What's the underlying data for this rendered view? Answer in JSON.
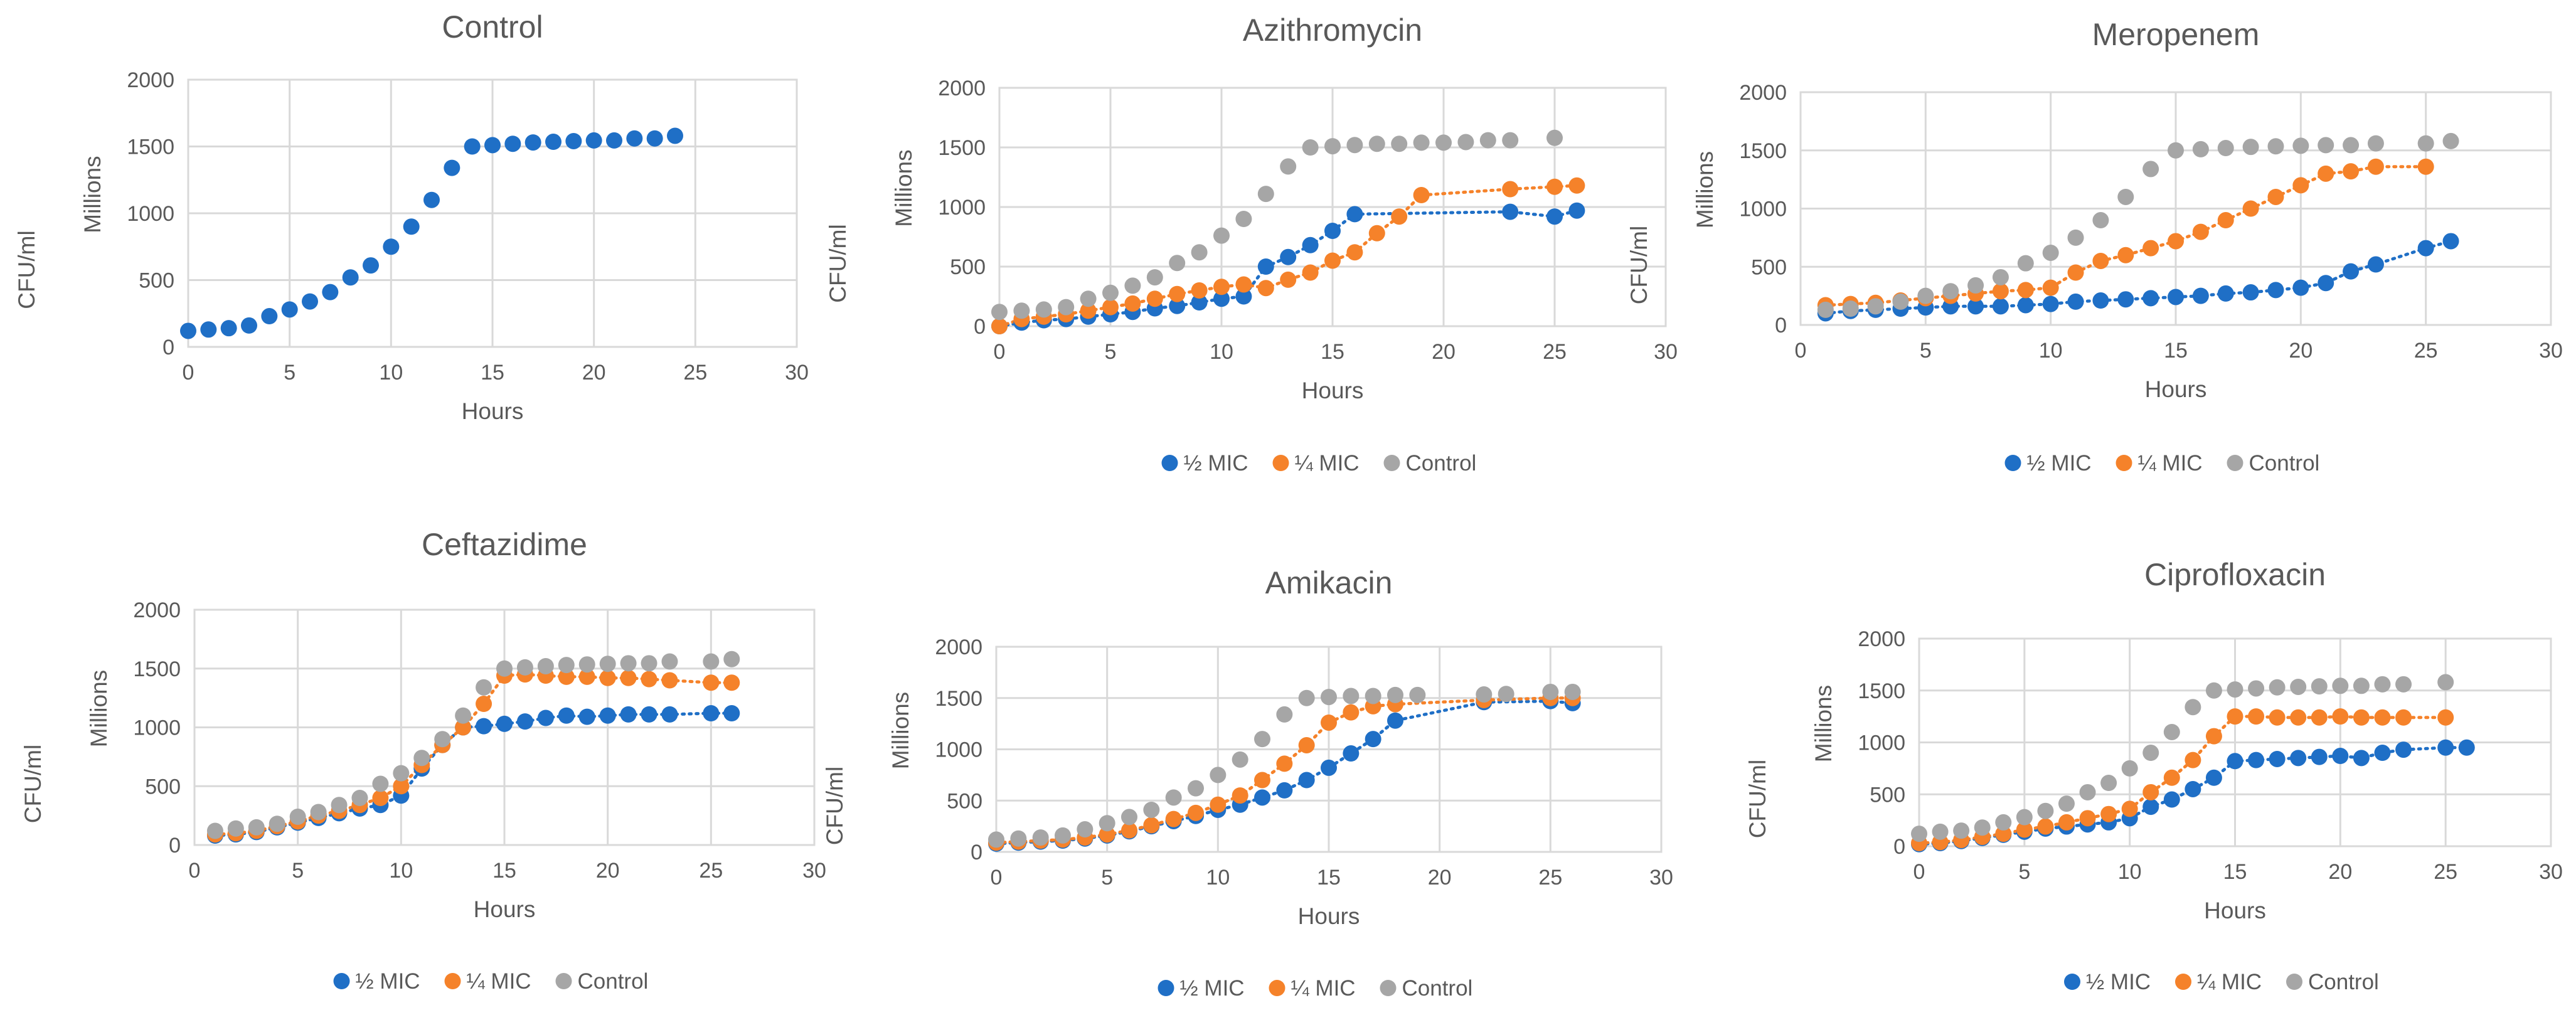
{
  "colors": {
    "half_mic": "#1f6fc6",
    "quarter_mic": "#f5822a",
    "control": "#a6a6a6"
  },
  "legend_labels": [
    "½ MIC",
    "¼ MIC",
    "Control"
  ],
  "chart_data": [
    {
      "type": "scatter",
      "title": "Control",
      "xlabel": "Hours",
      "ylabel": [
        "Millions",
        "CFU/ml"
      ],
      "xlim": [
        0,
        30
      ],
      "ylim": [
        0,
        2000
      ],
      "xticks": [
        "0",
        "5",
        "10",
        "15",
        "20",
        "25",
        "30"
      ],
      "yticks": [
        "0",
        "500",
        "1000",
        "1500",
        "2000"
      ],
      "legend": false,
      "series": [
        {
          "name": "Control",
          "color": "#1f6fc6",
          "trend": false,
          "x": [
            0,
            1,
            2,
            3,
            4,
            5,
            6,
            7,
            8,
            9,
            10,
            11,
            12,
            13,
            14,
            15,
            16,
            17,
            18,
            19,
            20,
            21,
            22,
            23,
            24
          ],
          "y": [
            120,
            130,
            140,
            160,
            230,
            280,
            340,
            410,
            520,
            610,
            750,
            900,
            1100,
            1340,
            1500,
            1510,
            1520,
            1530,
            1535,
            1540,
            1545,
            1545,
            1560,
            1560,
            1580
          ]
        }
      ]
    },
    {
      "type": "scatter",
      "title": "Azithromycin",
      "xlabel": "Hours",
      "ylabel": [
        "Millions",
        "CFU/ml"
      ],
      "xlim": [
        0,
        30
      ],
      "ylim": [
        0,
        2000
      ],
      "xticks": [
        "0",
        "5",
        "10",
        "15",
        "20",
        "25",
        "30"
      ],
      "yticks": [
        "0",
        "500",
        "1000",
        "1500",
        "2000"
      ],
      "legend": true,
      "series": [
        {
          "name": "½ MIC",
          "color": "#1f6fc6",
          "trend": true,
          "x": [
            0,
            1,
            2,
            3,
            4,
            5,
            6,
            7,
            8,
            9,
            10,
            11,
            12,
            13,
            14,
            15,
            16,
            23,
            25,
            26
          ],
          "y": [
            0,
            30,
            50,
            60,
            80,
            100,
            120,
            150,
            170,
            200,
            230,
            250,
            500,
            580,
            680,
            800,
            940,
            960,
            920,
            970
          ]
        },
        {
          "name": "¼ MIC",
          "color": "#f5822a",
          "trend": true,
          "x": [
            0,
            1,
            2,
            3,
            4,
            5,
            6,
            7,
            8,
            9,
            10,
            11,
            12,
            13,
            14,
            15,
            16,
            17,
            18,
            19,
            23,
            25,
            26
          ],
          "y": [
            0,
            60,
            80,
            100,
            130,
            160,
            190,
            230,
            270,
            300,
            330,
            350,
            320,
            390,
            450,
            550,
            620,
            780,
            920,
            1100,
            1150,
            1170,
            1180
          ]
        },
        {
          "name": "Control",
          "color": "#a6a6a6",
          "trend": false,
          "x": [
            0,
            1,
            2,
            3,
            4,
            5,
            6,
            7,
            8,
            9,
            10,
            11,
            12,
            13,
            14,
            15,
            16,
            17,
            18,
            19,
            20,
            21,
            22,
            23,
            25
          ],
          "y": [
            120,
            130,
            140,
            160,
            230,
            280,
            340,
            410,
            530,
            620,
            760,
            900,
            1110,
            1340,
            1500,
            1510,
            1520,
            1530,
            1530,
            1540,
            1540,
            1545,
            1560,
            1560,
            1580
          ]
        }
      ]
    },
    {
      "type": "scatter",
      "title": "Meropenem",
      "xlabel": "Hours",
      "ylabel": [
        "Millions",
        "CFU/ml"
      ],
      "xlim": [
        0,
        30
      ],
      "ylim": [
        0,
        2000
      ],
      "xticks": [
        "0",
        "5",
        "10",
        "15",
        "20",
        "25",
        "30"
      ],
      "yticks": [
        "0",
        "500",
        "1000",
        "1500",
        "2000"
      ],
      "legend": true,
      "series": [
        {
          "name": "½ MIC",
          "color": "#1f6fc6",
          "trend": true,
          "x": [
            1,
            2,
            3,
            4,
            5,
            6,
            7,
            8,
            9,
            10,
            11,
            12,
            13,
            14,
            15,
            16,
            17,
            18,
            19,
            20,
            21,
            22,
            23,
            25,
            26
          ],
          "y": [
            100,
            120,
            130,
            140,
            150,
            160,
            160,
            160,
            170,
            180,
            200,
            210,
            220,
            230,
            240,
            250,
            270,
            280,
            300,
            320,
            360,
            460,
            520,
            660,
            720
          ]
        },
        {
          "name": "¼ MIC",
          "color": "#f5822a",
          "trend": true,
          "x": [
            1,
            2,
            3,
            4,
            5,
            6,
            7,
            8,
            9,
            10,
            11,
            12,
            13,
            14,
            15,
            16,
            17,
            18,
            19,
            20,
            21,
            22,
            23,
            25
          ],
          "y": [
            170,
            180,
            190,
            210,
            230,
            250,
            270,
            290,
            300,
            320,
            450,
            550,
            600,
            660,
            720,
            800,
            900,
            1000,
            1100,
            1200,
            1300,
            1320,
            1360,
            1360
          ]
        },
        {
          "name": "Control",
          "color": "#a6a6a6",
          "trend": false,
          "x": [
            1,
            2,
            3,
            4,
            5,
            6,
            7,
            8,
            9,
            10,
            11,
            12,
            13,
            14,
            15,
            16,
            17,
            18,
            19,
            20,
            21,
            22,
            23,
            25,
            26
          ],
          "y": [
            130,
            140,
            160,
            200,
            250,
            290,
            340,
            410,
            530,
            620,
            750,
            900,
            1100,
            1340,
            1500,
            1510,
            1520,
            1530,
            1535,
            1540,
            1545,
            1545,
            1560,
            1560,
            1580
          ]
        }
      ]
    },
    {
      "type": "scatter",
      "title": "Ceftazidime",
      "xlabel": "Hours",
      "ylabel": [
        "Millions",
        "CFU/ml"
      ],
      "xlim": [
        0,
        30
      ],
      "ylim": [
        0,
        2000
      ],
      "xticks": [
        "0",
        "5",
        "10",
        "15",
        "20",
        "25",
        "30"
      ],
      "yticks": [
        "0",
        "500",
        "1000",
        "1500",
        "2000"
      ],
      "legend": true,
      "series": [
        {
          "name": "½ MIC",
          "color": "#1f6fc6",
          "trend": true,
          "x": [
            1,
            2,
            3,
            4,
            5,
            6,
            7,
            8,
            9,
            10,
            11,
            12,
            13,
            14,
            15,
            16,
            17,
            18,
            19,
            20,
            21,
            22,
            23,
            25,
            26
          ],
          "y": [
            80,
            90,
            110,
            150,
            190,
            230,
            270,
            310,
            340,
            420,
            650,
            850,
            1000,
            1010,
            1030,
            1050,
            1080,
            1100,
            1090,
            1100,
            1110,
            1110,
            1110,
            1120,
            1120
          ]
        },
        {
          "name": "¼ MIC",
          "color": "#f5822a",
          "trend": true,
          "x": [
            1,
            2,
            3,
            4,
            5,
            6,
            7,
            8,
            9,
            10,
            11,
            12,
            13,
            14,
            15,
            16,
            17,
            18,
            19,
            20,
            21,
            22,
            23,
            25,
            26
          ],
          "y": [
            90,
            100,
            120,
            160,
            200,
            250,
            290,
            340,
            400,
            500,
            680,
            850,
            1000,
            1200,
            1440,
            1450,
            1440,
            1430,
            1430,
            1420,
            1420,
            1410,
            1400,
            1380,
            1380
          ]
        },
        {
          "name": "Control",
          "color": "#a6a6a6",
          "trend": false,
          "x": [
            1,
            2,
            3,
            4,
            5,
            6,
            7,
            8,
            9,
            10,
            11,
            12,
            13,
            14,
            15,
            16,
            17,
            18,
            19,
            20,
            21,
            22,
            23,
            25,
            26
          ],
          "y": [
            120,
            140,
            150,
            180,
            240,
            280,
            340,
            400,
            520,
            610,
            740,
            900,
            1100,
            1340,
            1500,
            1510,
            1520,
            1530,
            1535,
            1540,
            1545,
            1545,
            1560,
            1560,
            1580
          ]
        }
      ]
    },
    {
      "type": "scatter",
      "title": "Amikacin",
      "xlabel": "Hours",
      "ylabel": [
        "Millions",
        "CFU/ml"
      ],
      "xlim": [
        0,
        30
      ],
      "ylim": [
        0,
        2000
      ],
      "xticks": [
        "0",
        "5",
        "10",
        "15",
        "20",
        "25",
        "30"
      ],
      "yticks": [
        "0",
        "500",
        "1000",
        "1500",
        "2000"
      ],
      "legend": true,
      "series": [
        {
          "name": "½ MIC",
          "color": "#1f6fc6",
          "trend": true,
          "x": [
            0,
            1,
            2,
            3,
            4,
            5,
            6,
            7,
            8,
            9,
            10,
            11,
            12,
            13,
            14,
            15,
            16,
            17,
            18,
            22,
            25,
            26
          ],
          "y": [
            80,
            90,
            100,
            110,
            130,
            160,
            200,
            250,
            300,
            350,
            410,
            460,
            530,
            600,
            700,
            820,
            960,
            1100,
            1280,
            1460,
            1470,
            1450
          ]
        },
        {
          "name": "¼ MIC",
          "color": "#f5822a",
          "trend": true,
          "x": [
            0,
            1,
            2,
            3,
            4,
            5,
            6,
            7,
            8,
            9,
            10,
            11,
            12,
            13,
            14,
            15,
            16,
            17,
            18,
            22,
            25,
            26
          ],
          "y": [
            90,
            100,
            110,
            120,
            140,
            170,
            210,
            260,
            320,
            380,
            460,
            550,
            700,
            860,
            1040,
            1260,
            1360,
            1420,
            1440,
            1480,
            1500,
            1500
          ]
        },
        {
          "name": "Control",
          "color": "#a6a6a6",
          "trend": false,
          "x": [
            0,
            1,
            2,
            3,
            4,
            5,
            6,
            7,
            8,
            9,
            10,
            11,
            12,
            13,
            14,
            15,
            16,
            17,
            18,
            19,
            22,
            23,
            25,
            26
          ],
          "y": [
            120,
            130,
            140,
            160,
            220,
            280,
            340,
            410,
            530,
            620,
            750,
            900,
            1100,
            1340,
            1500,
            1510,
            1520,
            1520,
            1530,
            1530,
            1535,
            1540,
            1560,
            1560
          ]
        }
      ]
    },
    {
      "type": "scatter",
      "title": "Ciprofloxacin",
      "xlabel": "Hours",
      "ylabel": [
        "Millions",
        "CFU/ml"
      ],
      "xlim": [
        0,
        30
      ],
      "ylim": [
        0,
        2000
      ],
      "xticks": [
        "0",
        "5",
        "10",
        "15",
        "20",
        "25",
        "30"
      ],
      "yticks": [
        "0",
        "500",
        "1000",
        "1500",
        "2000"
      ],
      "legend": true,
      "series": [
        {
          "name": "½ MIC",
          "color": "#1f6fc6",
          "trend": true,
          "x": [
            0,
            1,
            2,
            3,
            4,
            5,
            6,
            7,
            8,
            9,
            10,
            11,
            12,
            13,
            14,
            15,
            16,
            17,
            18,
            19,
            20,
            21,
            22,
            23,
            25,
            26
          ],
          "y": [
            20,
            30,
            50,
            80,
            110,
            140,
            170,
            190,
            210,
            230,
            270,
            380,
            450,
            550,
            660,
            820,
            830,
            840,
            850,
            860,
            870,
            850,
            900,
            930,
            950,
            950
          ]
        },
        {
          "name": "¼ MIC",
          "color": "#f5822a",
          "trend": true,
          "x": [
            0,
            1,
            2,
            3,
            4,
            5,
            6,
            7,
            8,
            9,
            10,
            11,
            12,
            13,
            14,
            15,
            16,
            17,
            18,
            19,
            20,
            21,
            22,
            23,
            25
          ],
          "y": [
            30,
            40,
            60,
            90,
            120,
            160,
            190,
            230,
            270,
            310,
            360,
            520,
            660,
            830,
            1060,
            1250,
            1250,
            1240,
            1240,
            1240,
            1250,
            1240,
            1240,
            1240,
            1240
          ]
        },
        {
          "name": "Control",
          "color": "#a6a6a6",
          "trend": false,
          "x": [
            0,
            1,
            2,
            3,
            4,
            5,
            6,
            7,
            8,
            9,
            10,
            11,
            12,
            13,
            14,
            15,
            16,
            17,
            18,
            19,
            20,
            21,
            22,
            23,
            25
          ],
          "y": [
            120,
            140,
            150,
            180,
            230,
            280,
            340,
            410,
            520,
            610,
            750,
            900,
            1100,
            1340,
            1500,
            1510,
            1520,
            1530,
            1535,
            1540,
            1545,
            1545,
            1560,
            1560,
            1580
          ]
        }
      ]
    }
  ]
}
